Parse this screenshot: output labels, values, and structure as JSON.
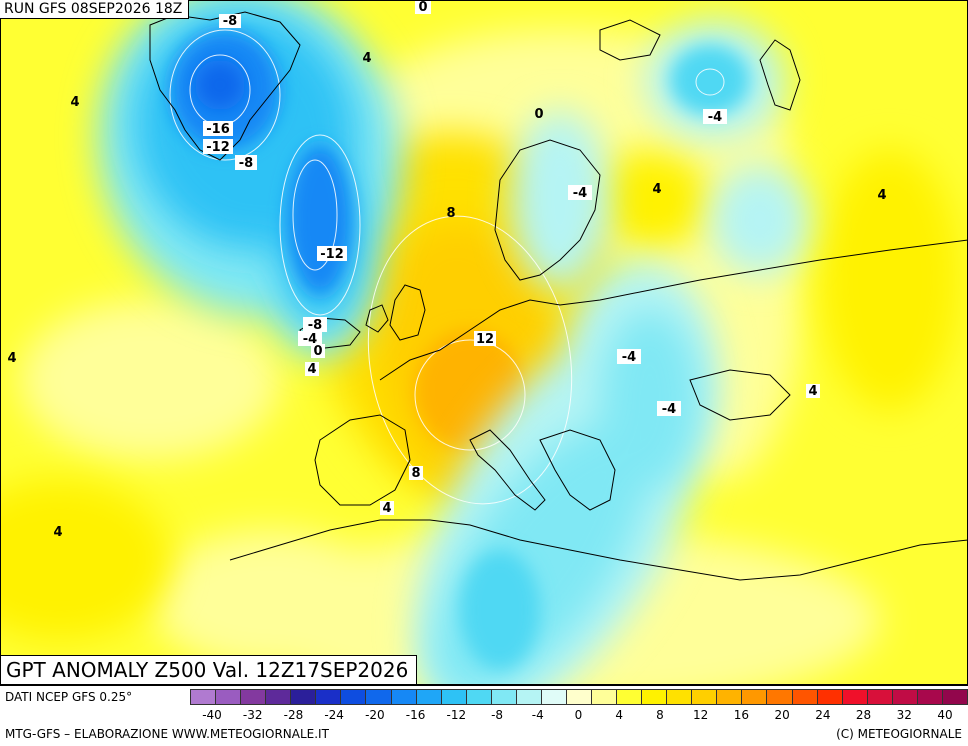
{
  "run_title": "RUN GFS 08SEP2026 18Z",
  "anomaly_title": "GPT ANOMALY Z500 Val. 12Z17SEP2026",
  "source_label": "DATI NCEP GFS 0.25°",
  "credit_label": "MTG-GFS – ELABORAZIONE WWW.METEOGIORNALE.IT",
  "copyright_label": "(C) METEOGIORNALE",
  "scale": {
    "ticks": [
      "-40",
      "-32",
      "-28",
      "-24",
      "-20",
      "-16",
      "-12",
      "-8",
      "-4",
      "0",
      "4",
      "8",
      "12",
      "16",
      "20",
      "24",
      "28",
      "32",
      "40"
    ],
    "colors": [
      "#b07ad0",
      "#9a5cc0",
      "#83399f",
      "#5e2a9a",
      "#2b1f9a",
      "#1a2fc8",
      "#0e4de0",
      "#1068ec",
      "#1688f5",
      "#1fa6f7",
      "#2ec2f5",
      "#4fd8f3",
      "#80e8f4",
      "#b5f4f4",
      "#e0fcf8",
      "#ffffcc",
      "#ffff99",
      "#ffff33",
      "#fff200",
      "#ffe100",
      "#ffcf00",
      "#ffb300",
      "#ff9800",
      "#ff7700",
      "#ff5500",
      "#ff3000",
      "#f0102a",
      "#d8103a",
      "#c00c45",
      "#a8084c",
      "#92064c"
    ]
  },
  "contour_labels": [
    {
      "value": "-8"
    },
    {
      "value": "0"
    },
    {
      "value": "4"
    },
    {
      "value": "4"
    },
    {
      "value": "-16"
    },
    {
      "value": "-12"
    },
    {
      "value": "-8"
    },
    {
      "value": "0"
    },
    {
      "value": "-4"
    },
    {
      "value": "-4"
    },
    {
      "value": "4"
    },
    {
      "value": "4"
    },
    {
      "value": "8"
    },
    {
      "value": "-12"
    },
    {
      "value": "-8"
    },
    {
      "value": "-4"
    },
    {
      "value": "0"
    },
    {
      "value": "4"
    },
    {
      "value": "4"
    },
    {
      "value": "12"
    },
    {
      "value": "-4"
    },
    {
      "value": "-4"
    },
    {
      "value": "4"
    },
    {
      "value": "8"
    },
    {
      "value": "4"
    },
    {
      "value": "4"
    }
  ]
}
